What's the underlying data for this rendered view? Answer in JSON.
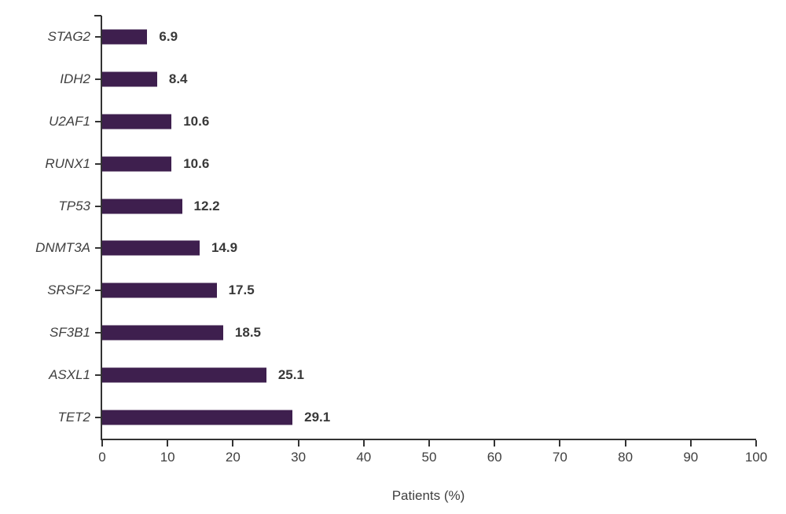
{
  "chart_data": {
    "type": "bar",
    "orientation": "horizontal",
    "categories": [
      "STAG2",
      "IDH2",
      "U2AF1",
      "RUNX1",
      "TP53",
      "DNMT3A",
      "SRSF2",
      "SF3B1",
      "ASXL1",
      "TET2"
    ],
    "values": [
      6.9,
      8.4,
      10.6,
      10.6,
      12.2,
      14.9,
      17.5,
      18.5,
      25.1,
      29.1
    ],
    "value_labels": [
      "6.9",
      "8.4",
      "10.6",
      "10.6",
      "12.2",
      "14.9",
      "17.5",
      "18.5",
      "25.1",
      "29.1"
    ],
    "title": "",
    "xlabel": "Patients (%)",
    "ylabel": "",
    "xlim": [
      0,
      100
    ],
    "xticks": [
      0,
      10,
      20,
      30,
      40,
      50,
      60,
      70,
      80,
      90,
      100
    ],
    "grid": false,
    "legend": false,
    "bar_color": "#3E1F4E",
    "axis_color": "#333333",
    "text_color": "#3f3f3f"
  }
}
